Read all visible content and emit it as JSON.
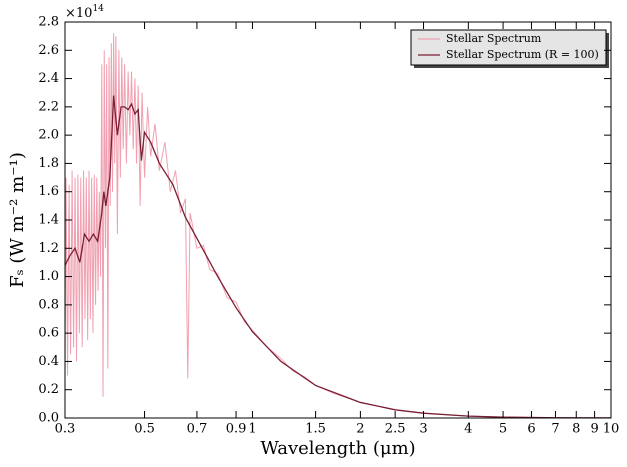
{
  "chart_data": {
    "type": "line",
    "xlabel": "Wavelength (μm)",
    "ylabel": "Fₛ (W m⁻² m⁻¹)",
    "y_offset_base": "×10",
    "y_offset_exp": "14",
    "xscale": "log",
    "xlim": [
      0.3,
      10
    ],
    "ylim": [
      0,
      2.8
    ],
    "xticks": [
      0.3,
      0.5,
      0.7,
      0.9,
      1,
      1.5,
      2,
      2.5,
      3,
      4,
      5,
      6,
      7,
      8,
      9,
      10
    ],
    "yticks": [
      {
        "value": 0,
        "label": "0.0"
      },
      0.2,
      0.4,
      0.6,
      0.8,
      {
        "value": 1,
        "label": "1.0"
      },
      1.2,
      1.4,
      1.6,
      1.8,
      {
        "value": 2,
        "label": "2.0"
      },
      2.2,
      2.4,
      2.6,
      2.8
    ],
    "legend": "upper right",
    "series": [
      {
        "name": "Stellar Spectrum",
        "color": "#f0a0b0",
        "x": [
          0.3,
          0.302,
          0.305,
          0.308,
          0.311,
          0.314,
          0.317,
          0.32,
          0.323,
          0.326,
          0.329,
          0.332,
          0.335,
          0.338,
          0.341,
          0.344,
          0.347,
          0.35,
          0.353,
          0.356,
          0.359,
          0.362,
          0.365,
          0.368,
          0.371,
          0.374,
          0.377,
          0.38,
          0.383,
          0.386,
          0.389,
          0.392,
          0.395,
          0.398,
          0.401,
          0.404,
          0.407,
          0.41,
          0.413,
          0.416,
          0.42,
          0.424,
          0.428,
          0.432,
          0.436,
          0.44,
          0.445,
          0.45,
          0.455,
          0.46,
          0.465,
          0.47,
          0.475,
          0.48,
          0.486,
          0.492,
          0.5,
          0.51,
          0.52,
          0.535,
          0.55,
          0.57,
          0.59,
          0.61,
          0.63,
          0.65,
          0.66,
          0.67,
          0.7,
          0.73,
          0.76,
          0.8,
          0.85,
          0.9,
          0.95,
          1.0,
          1.1,
          1.2,
          1.3,
          1.4,
          1.5,
          1.7,
          2.0,
          2.5,
          3.0,
          4.0,
          5.0,
          7.0,
          10.0
        ],
        "values": [
          0.35,
          1.7,
          0.3,
          1.65,
          0.45,
          1.75,
          0.5,
          1.7,
          0.4,
          1.72,
          0.6,
          1.7,
          0.5,
          1.75,
          0.7,
          1.7,
          0.55,
          1.75,
          0.7,
          1.7,
          0.6,
          1.72,
          0.8,
          1.7,
          0.9,
          1.6,
          1.0,
          2.5,
          0.15,
          2.6,
          1.2,
          2.5,
          0.35,
          2.55,
          1.5,
          2.65,
          1.6,
          2.72,
          1.8,
          2.7,
          1.3,
          2.6,
          1.7,
          2.55,
          1.9,
          2.5,
          1.8,
          2.45,
          2.0,
          2.45,
          1.9,
          2.4,
          1.8,
          2.35,
          1.5,
          2.3,
          1.7,
          2.2,
          1.85,
          2.08,
          1.75,
          1.95,
          1.6,
          1.75,
          1.45,
          1.55,
          0.28,
          1.45,
          1.2,
          1.22,
          1.05,
          1.02,
          0.85,
          0.82,
          0.68,
          0.62,
          0.5,
          0.42,
          0.33,
          0.29,
          0.23,
          0.17,
          0.11,
          0.058,
          0.034,
          0.013,
          0.006,
          0.002,
          0.0005
        ]
      },
      {
        "name": "Stellar Spectrum (R = 100)",
        "color": "#7a1f35",
        "x": [
          0.3,
          0.31,
          0.32,
          0.33,
          0.34,
          0.35,
          0.36,
          0.37,
          0.38,
          0.385,
          0.39,
          0.4,
          0.41,
          0.42,
          0.43,
          0.44,
          0.45,
          0.46,
          0.47,
          0.48,
          0.49,
          0.5,
          0.52,
          0.55,
          0.6,
          0.65,
          0.7,
          0.8,
          0.9,
          1.0,
          1.2,
          1.5,
          2,
          2.5,
          3,
          4,
          5,
          7,
          10
        ],
        "values": [
          1.08,
          1.15,
          1.2,
          1.1,
          1.3,
          1.25,
          1.3,
          1.25,
          1.45,
          1.6,
          1.5,
          1.7,
          2.28,
          2.0,
          2.2,
          2.2,
          2.18,
          2.22,
          2.15,
          2.18,
          1.82,
          2.02,
          1.95,
          1.8,
          1.65,
          1.42,
          1.27,
          1.0,
          0.78,
          0.61,
          0.4,
          0.23,
          0.11,
          0.058,
          0.034,
          0.013,
          0.006,
          0.002,
          0.0005
        ]
      }
    ]
  }
}
